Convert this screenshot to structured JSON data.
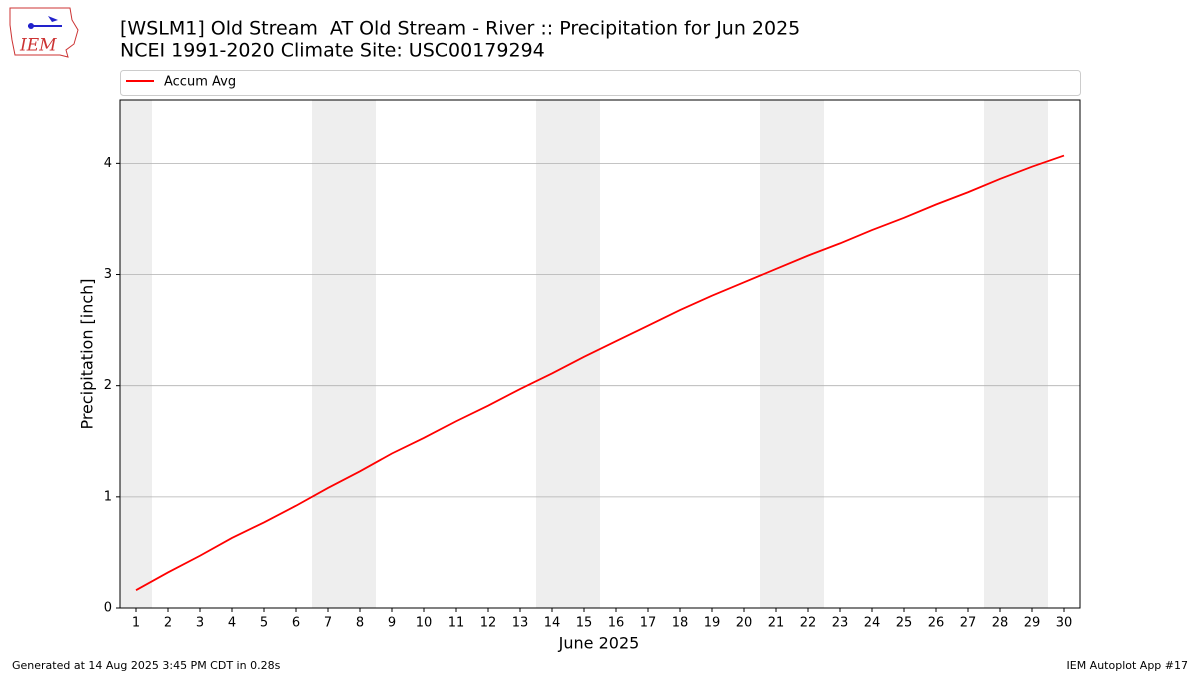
{
  "chart_data": {
    "type": "line",
    "title": "[WSLM1] Old Stream  AT Old Stream - River :: Precipitation for Jun 2025",
    "subtitle": "NCEI 1991-2020 Climate Site: USC00179294",
    "xlabel": "June 2025",
    "ylabel": "Precipitation [inch]",
    "x": [
      1,
      2,
      3,
      4,
      5,
      6,
      7,
      8,
      9,
      10,
      11,
      12,
      13,
      14,
      15,
      16,
      17,
      18,
      19,
      20,
      21,
      22,
      23,
      24,
      25,
      26,
      27,
      28,
      29,
      30
    ],
    "series": [
      {
        "name": "Accum Avg",
        "color": "#ff0000",
        "values": [
          0.16,
          0.32,
          0.47,
          0.63,
          0.77,
          0.92,
          1.08,
          1.23,
          1.39,
          1.53,
          1.68,
          1.82,
          1.97,
          2.11,
          2.26,
          2.4,
          2.54,
          2.68,
          2.81,
          2.93,
          3.05,
          3.17,
          3.28,
          3.4,
          3.51,
          3.63,
          3.74,
          3.86,
          3.97,
          4.07
        ]
      }
    ],
    "xlim": [
      0.5,
      30.5
    ],
    "xticks": [
      1,
      2,
      3,
      4,
      5,
      6,
      7,
      8,
      9,
      10,
      11,
      12,
      13,
      14,
      15,
      16,
      17,
      18,
      19,
      20,
      21,
      22,
      23,
      24,
      25,
      26,
      27,
      28,
      29,
      30
    ],
    "ylim": [
      0,
      4.57
    ],
    "yticks": [
      0,
      1,
      2,
      3,
      4
    ],
    "grid": "y",
    "legend": "top",
    "shaded_spans": [
      [
        0.5,
        1.5
      ],
      [
        6.5,
        8.5
      ],
      [
        13.5,
        15.5
      ],
      [
        20.5,
        22.5
      ],
      [
        27.5,
        29.5
      ]
    ],
    "shade_color": "#eeeeee"
  },
  "logo": "IEM",
  "footer": {
    "left": "Generated at 14 Aug 2025 3:45 PM CDT in 0.28s",
    "right": "IEM Autoplot App #17"
  }
}
